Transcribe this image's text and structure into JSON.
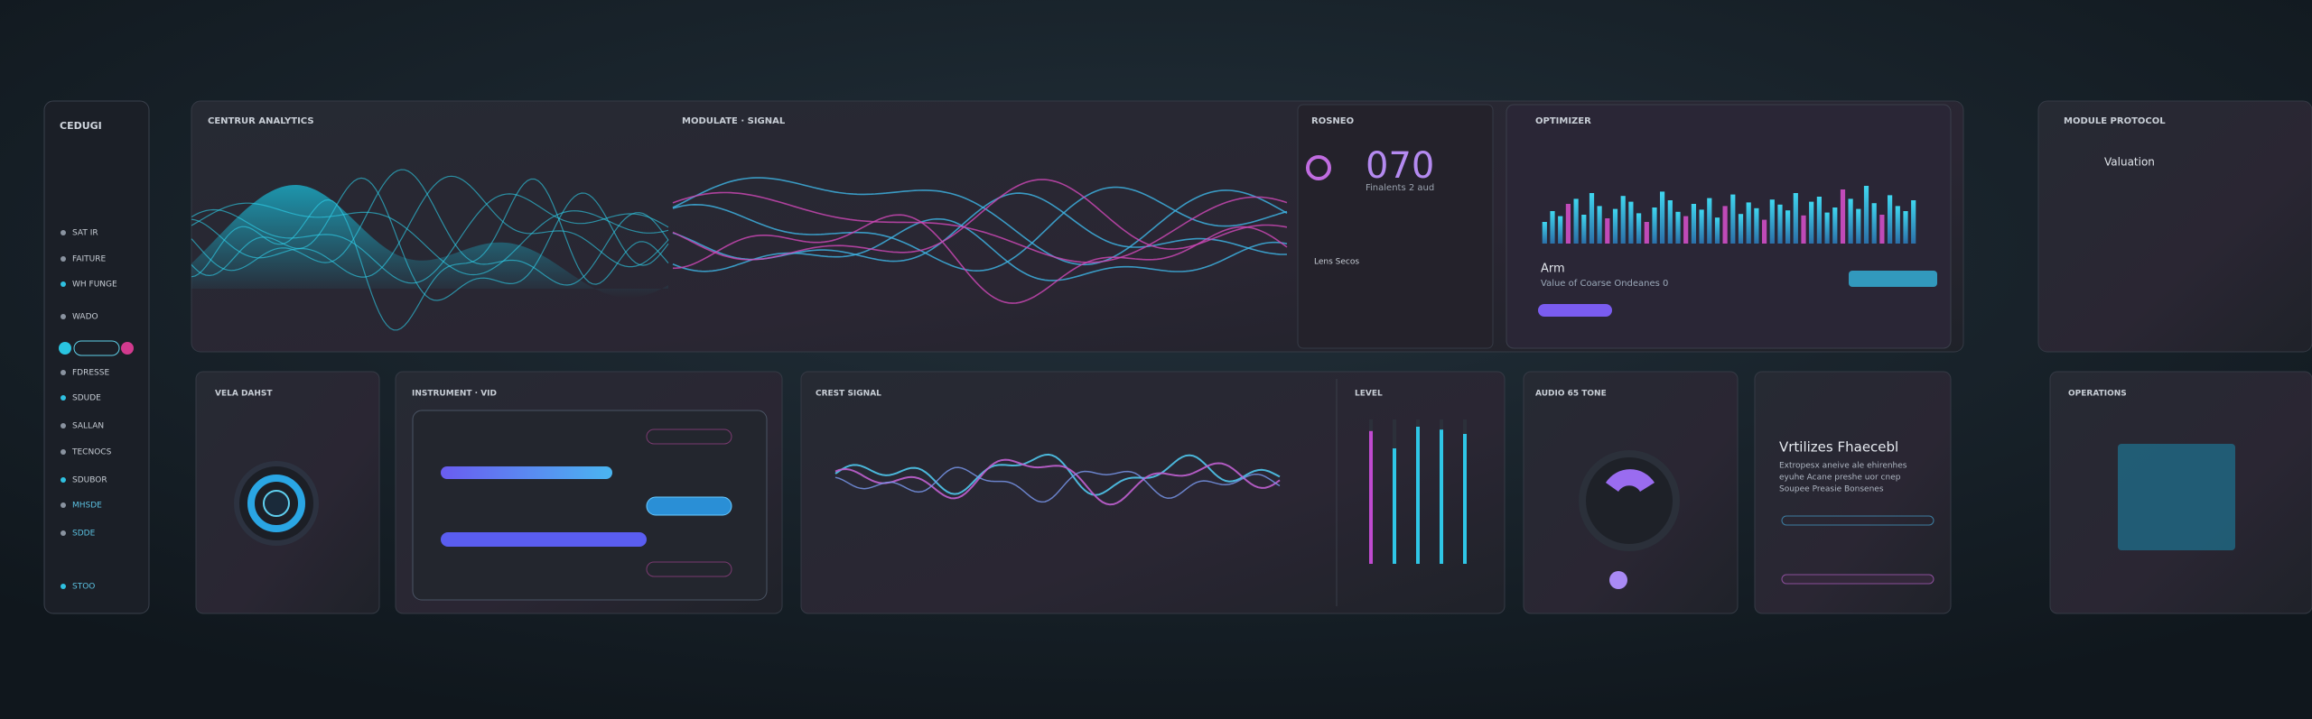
{
  "sidebar": {
    "title": "CEDUGI",
    "items": [
      "SAT IR",
      "FAITURE",
      "WH FUNGE",
      "WADO",
      "FDRESSE",
      "SDUDE",
      "SALLAN",
      "TECNOCS",
      "SDUBOR",
      "MHSDE",
      "SDDE",
      "STOO"
    ]
  },
  "top": {
    "waves": {
      "title": "CENTRUR ANALYTICS"
    },
    "signals": {
      "title": "MODULATE · SIGNAL"
    },
    "display": {
      "title": "ROSNEO",
      "value": "070",
      "caption": "Finalents 2 aud",
      "note": "Lens Secos"
    },
    "optimization": {
      "title": "OPTIMIZER",
      "label": "Arm",
      "caption": "Value of Coarse Ondeanes 0",
      "bars": [
        30,
        45,
        38,
        55,
        62,
        40,
        70,
        52,
        35,
        48,
        66,
        58,
        42,
        30,
        50,
        72,
        60,
        44,
        38,
        55,
        47,
        63,
        36,
        52,
        68,
        41,
        57,
        49,
        33,
        61,
        54,
        46,
        70,
        39,
        58,
        65,
        43,
        50,
        75,
        62,
        48,
        80,
        56,
        40,
        67,
        52,
        45,
        60
      ]
    }
  },
  "right": {
    "title": "MODULE PROTOCOL",
    "header": "Valuation"
  },
  "bottom": {
    "knob": {
      "title": "VELA DAHST"
    },
    "sliders": {
      "title": "INSTRUMENT · VID"
    },
    "spectrum": {
      "title": "CREST SIGNAL"
    },
    "levels": {
      "title": "LEVEL",
      "values": [
        92,
        80,
        95,
        93,
        90
      ]
    },
    "audio": {
      "title": "AUDIO 65 TONE"
    },
    "notice": {
      "title": "Vrtilizes Fhaecebl",
      "lines": [
        "Extropesx aneive ale ehirenhes",
        "eyuhe Acane preshe uor cnep",
        "Soupee Preasie Bonsenes"
      ]
    },
    "grid": {
      "title": "OPERATIONS"
    }
  }
}
